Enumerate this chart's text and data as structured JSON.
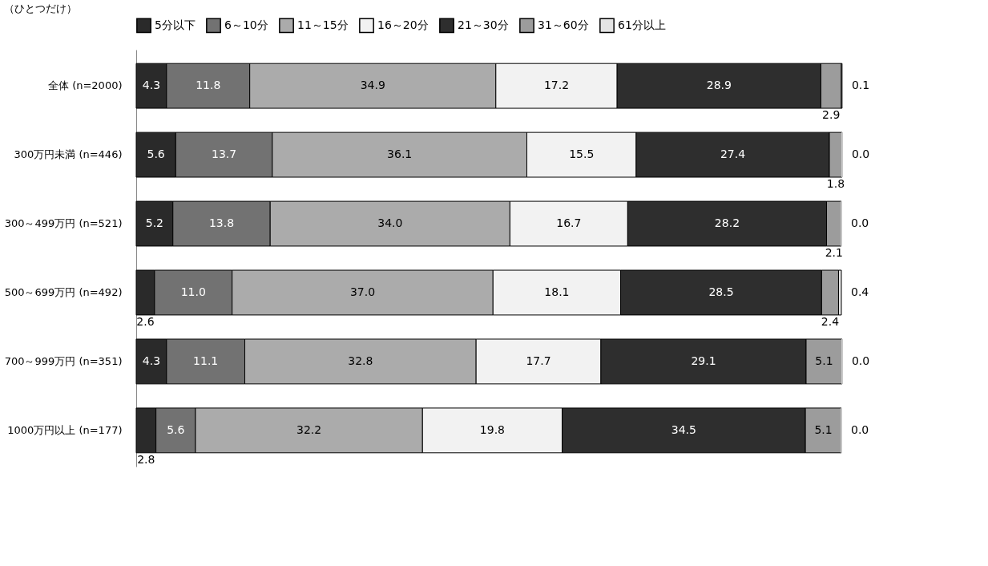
{
  "chart_data": {
    "type": "bar",
    "orientation": "horizontal",
    "stacked": true,
    "legend": "top",
    "tick_labels": "y",
    "annotations": [
      "（ひとつだけ）"
    ],
    "categories": [
      "全体 (n=2000)",
      "300万円未満 (n=446)",
      "300～499万円 (n=521)",
      "500～699万円 (n=492)",
      "700～999万円 (n=351)",
      "1000万円以上 (n=177)"
    ],
    "xlim": [
      0,
      100
    ],
    "series": [
      {
        "name": "5分以下",
        "color": "#2a2a2a",
        "values": [
          4.3,
          5.6,
          5.2,
          2.6,
          4.3,
          2.8
        ],
        "value_labels": [
          "4.3",
          "5.6",
          "5.2",
          "2.6",
          "4.3",
          "2.8"
        ]
      },
      {
        "name": "6～10分",
        "color": "#727272",
        "values": [
          11.8,
          13.7,
          13.8,
          11.0,
          11.1,
          5.6
        ],
        "value_labels": [
          "11.8",
          "13.7",
          "13.8",
          "11.0",
          "11.1",
          "5.6"
        ]
      },
      {
        "name": "11～15分",
        "color": "#ababab",
        "values": [
          34.9,
          36.1,
          34.0,
          37.0,
          32.8,
          32.2
        ],
        "value_labels": [
          "34.9",
          "36.1",
          "34.0",
          "37.0",
          "32.8",
          "32.2"
        ]
      },
      {
        "name": "16～20分",
        "color": "#f2f2f2",
        "values": [
          17.2,
          15.5,
          16.7,
          18.1,
          17.7,
          19.8
        ],
        "value_labels": [
          "17.2",
          "15.5",
          "16.7",
          "18.1",
          "17.7",
          "19.8"
        ]
      },
      {
        "name": "21～30分",
        "color": "#2e2e2e",
        "values": [
          28.9,
          27.4,
          28.2,
          28.5,
          29.1,
          34.5
        ],
        "value_labels": [
          "28.9",
          "27.4",
          "28.2",
          "28.5",
          "29.1",
          "34.5"
        ]
      },
      {
        "name": "31～60分",
        "color": "#9c9c9c",
        "values": [
          2.9,
          1.8,
          2.1,
          2.4,
          5.1,
          5.1
        ],
        "value_labels": [
          "2.9",
          "1.8",
          "2.1",
          "2.4",
          "5.1",
          "5.1"
        ]
      },
      {
        "name": "61分以上",
        "color": "#e4e4e4",
        "values": [
          0.1,
          0.0,
          0.0,
          0.4,
          0.0,
          0.0
        ],
        "value_labels": [
          "0.1",
          "0.0",
          "0.0",
          "0.4",
          "0.0",
          "0.0"
        ]
      }
    ]
  }
}
